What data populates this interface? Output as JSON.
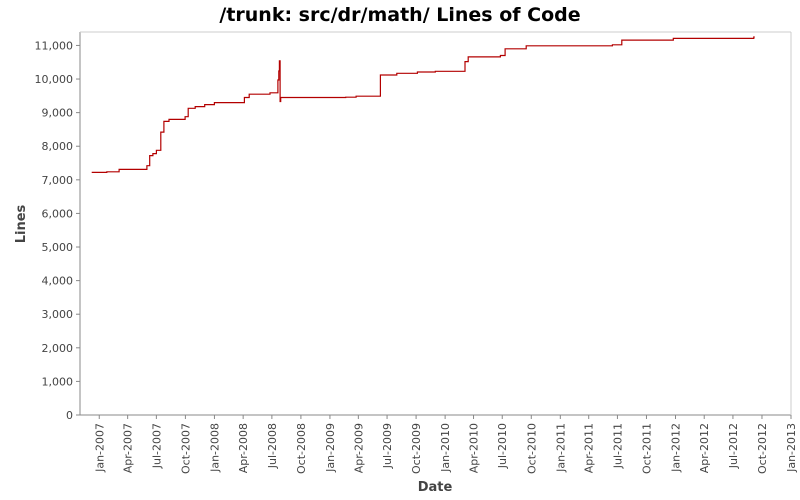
{
  "chart_data": {
    "type": "line",
    "title": "/trunk: src/dr/math/ Lines of Code",
    "xlabel": "Date",
    "ylabel": "Lines",
    "ylim": [
      0,
      11400
    ],
    "xlim": [
      "2006-11-01",
      "2013-01-01"
    ],
    "grid": false,
    "legend": "none",
    "line_color": "#b30000",
    "x_ticks": [
      "Jan-2007",
      "Apr-2007",
      "Jul-2007",
      "Oct-2007",
      "Jan-2008",
      "Apr-2008",
      "Jul-2008",
      "Oct-2008",
      "Jan-2009",
      "Apr-2009",
      "Jul-2009",
      "Oct-2009",
      "Jan-2010",
      "Apr-2010",
      "Jul-2010",
      "Oct-2010",
      "Jan-2011",
      "Apr-2011",
      "Jul-2011",
      "Oct-2011",
      "Jan-2012",
      "Apr-2012",
      "Jul-2012",
      "Oct-2012",
      "Jan-2013"
    ],
    "y_ticks": [
      0,
      1000,
      2000,
      3000,
      4000,
      5000,
      6000,
      7000,
      8000,
      9000,
      10000,
      11000
    ],
    "y_tick_labels": [
      "0",
      "1,000",
      "2,000",
      "3,000",
      "4,000",
      "5,000",
      "6,000",
      "7,000",
      "8,000",
      "9,000",
      "10,000",
      "11,000"
    ],
    "x": [
      "2006-12-08",
      "2007-01-25",
      "2007-03-05",
      "2007-06-01",
      "2007-06-10",
      "2007-06-20",
      "2007-07-01",
      "2007-07-15",
      "2007-07-25",
      "2007-08-10",
      "2007-09-30",
      "2007-10-10",
      "2007-11-01",
      "2007-12-01",
      "2008-01-01",
      "2008-03-20",
      "2008-04-05",
      "2008-04-20",
      "2008-06-25",
      "2008-07-20",
      "2008-07-23",
      "2008-07-25",
      "2008-07-27",
      "2008-07-29",
      "2008-07-31",
      "2009-02-20",
      "2009-03-25",
      "2009-06-10",
      "2009-08-01",
      "2009-10-05",
      "2009-12-01",
      "2010-03-05",
      "2010-03-15",
      "2010-06-25",
      "2010-07-10",
      "2010-09-15",
      "2011-03-15",
      "2011-06-15",
      "2011-07-15",
      "2011-12-25",
      "2012-09-05"
    ],
    "y": [
      7220,
      7240,
      7310,
      7420,
      7720,
      7780,
      7880,
      8420,
      8740,
      8800,
      8880,
      9130,
      9180,
      9240,
      9300,
      9300,
      9450,
      9550,
      9590,
      9970,
      10240,
      10540,
      9330,
      9450,
      9450,
      9460,
      9490,
      10120,
      10170,
      10210,
      10230,
      10520,
      10660,
      10700,
      10900,
      10990,
      10990,
      11020,
      11160,
      11210,
      11250
    ]
  }
}
